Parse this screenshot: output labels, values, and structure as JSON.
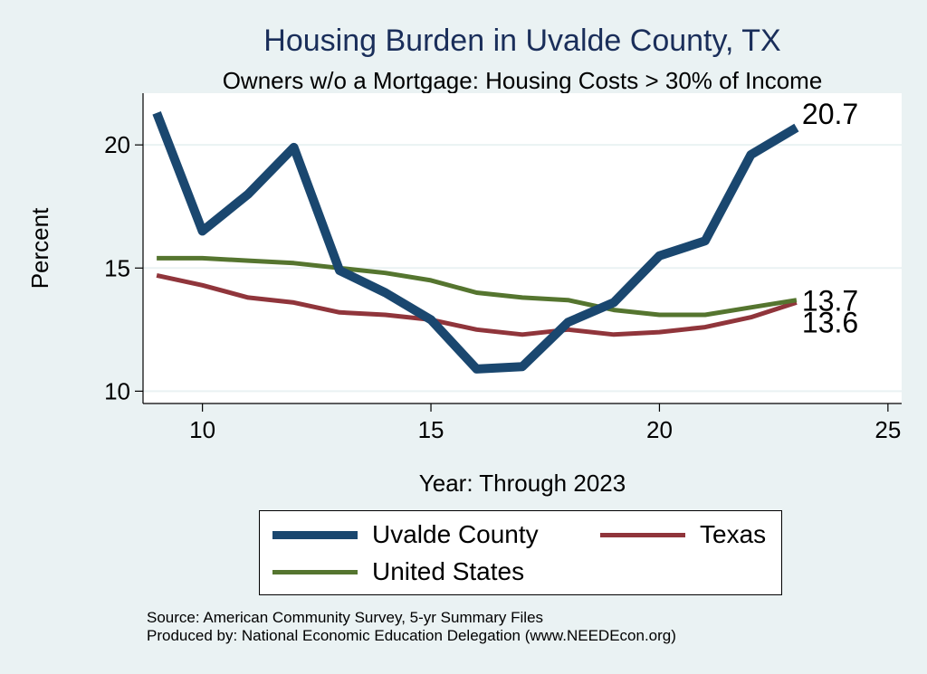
{
  "chart_data": {
    "type": "line",
    "title": "Housing Burden in Uvalde County, TX",
    "subtitle": "Owners w/o a Mortgage: Housing Costs > 30% of Income",
    "xlabel": "Year: Through 2023",
    "ylabel": "Percent",
    "xlim": [
      8.7,
      25.3
    ],
    "ylim": [
      9.5,
      22.1
    ],
    "xticks": [
      10,
      15,
      20,
      25
    ],
    "yticks": [
      10,
      15,
      20
    ],
    "grid": true,
    "x": [
      9,
      10,
      11,
      12,
      13,
      14,
      15,
      16,
      17,
      18,
      19,
      20,
      21,
      22,
      23
    ],
    "series": [
      {
        "name": "Uvalde County",
        "color": "#1a476f",
        "values": [
          21.3,
          16.5,
          18.0,
          19.9,
          14.9,
          14.0,
          12.9,
          10.9,
          11.0,
          12.8,
          13.6,
          15.5,
          16.1,
          19.6,
          20.7
        ],
        "end_label": "20.7"
      },
      {
        "name": "Texas",
        "color": "#90353b",
        "values": [
          14.7,
          14.3,
          13.8,
          13.6,
          13.2,
          13.1,
          12.9,
          12.5,
          12.3,
          12.5,
          12.3,
          12.4,
          12.6,
          13.0,
          13.6
        ],
        "end_label": "13.6"
      },
      {
        "name": "United States",
        "color": "#55752f",
        "values": [
          15.4,
          15.4,
          15.3,
          15.2,
          15.0,
          14.8,
          14.5,
          14.0,
          13.8,
          13.7,
          13.3,
          13.1,
          13.1,
          13.4,
          13.7
        ],
        "end_label": "13.7"
      }
    ],
    "legend": [
      "Uvalde County",
      "Texas",
      "United States"
    ],
    "legend_position": "bottom"
  },
  "source_line": "Source: American Community Survey, 5-yr Summary Files",
  "produced_line": "Produced by: National Economic Education Delegation (www.NEEDEcon.org)"
}
